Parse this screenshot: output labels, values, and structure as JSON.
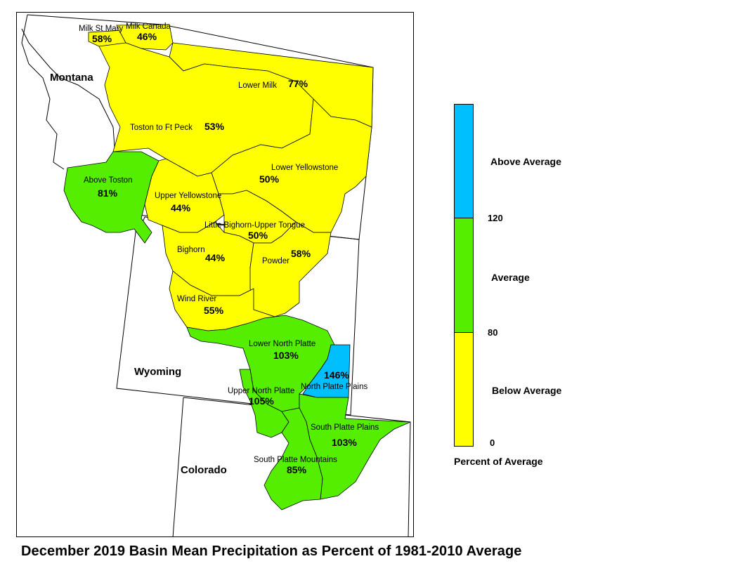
{
  "title": "December 2019 Basin Mean Precipitation as Percent of 1981-2010 Average",
  "colors": {
    "above": "#00bfff",
    "average": "#55ee00",
    "below": "#ffff00",
    "outline": "#000000",
    "state_line": "#000000"
  },
  "states": {
    "montana": "Montana",
    "wyoming": "Wyoming",
    "colorado": "Colorado"
  },
  "basins": {
    "milk_st_mary": {
      "name": "Milk St Mary",
      "pct": "58%",
      "category": "below"
    },
    "milk_canada": {
      "name": "Milk Canada",
      "pct": "46%",
      "category": "below"
    },
    "lower_milk": {
      "name": "Lower Milk",
      "pct": "77%",
      "category": "below"
    },
    "toston_ft_peck": {
      "name": "Toston to Ft Peck",
      "pct": "53%",
      "category": "below"
    },
    "above_toston": {
      "name": "Above Toston",
      "pct": "81%",
      "category": "average"
    },
    "upper_yellowstone": {
      "name": "Upper Yellowstone",
      "pct": "44%",
      "category": "below"
    },
    "lower_yellowstone": {
      "name": "Lower Yellowstone",
      "pct": "50%",
      "category": "below"
    },
    "little_bighorn": {
      "name": "Little Bighorn-Upper Tongue",
      "pct": "50%",
      "category": "below"
    },
    "bighorn": {
      "name": "Bighorn",
      "pct": "44%",
      "category": "below"
    },
    "powder": {
      "name": "Powder",
      "pct": "58%",
      "category": "below"
    },
    "wind_river": {
      "name": "Wind River",
      "pct": "55%",
      "category": "below"
    },
    "lower_north_platte": {
      "name": "Lower North Platte",
      "pct": "103%",
      "category": "average"
    },
    "north_platte_plains": {
      "name": "North Platte Plains",
      "pct": "146%",
      "category": "above"
    },
    "upper_north_platte": {
      "name": "Upper North Platte",
      "pct": "105%",
      "category": "average"
    },
    "south_platte_plains": {
      "name": "South Platte Plains",
      "pct": "103%",
      "category": "average"
    },
    "south_platte_mountains": {
      "name": "South Platte Mountains",
      "pct": "85%",
      "category": "average"
    }
  },
  "legend": {
    "title": "Percent of Average",
    "categories": {
      "above": "Above Average",
      "average": "Average",
      "below": "Below Average"
    },
    "ticks": [
      "120",
      "80",
      "0"
    ]
  }
}
